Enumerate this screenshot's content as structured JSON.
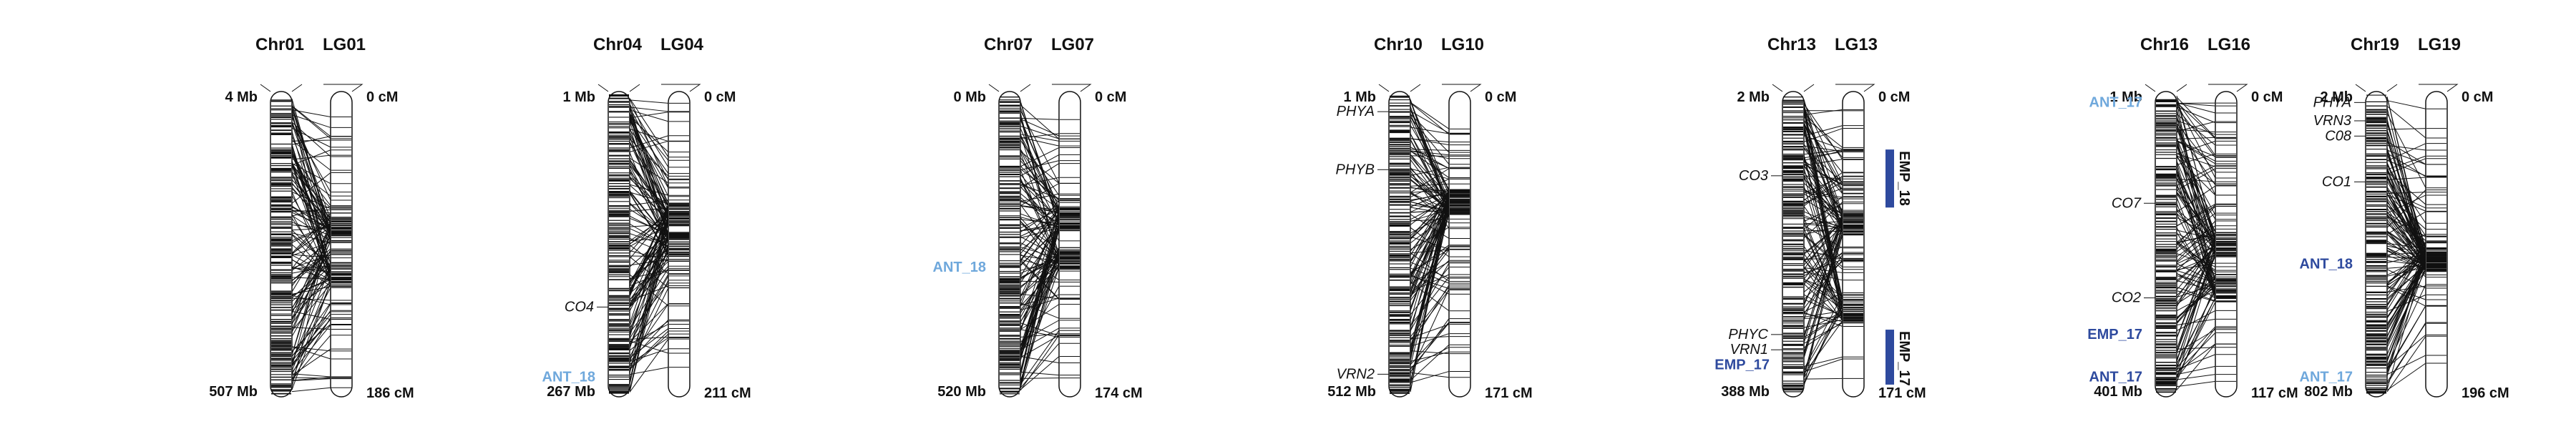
{
  "colors": {
    "light_blue": "#6fa8dc",
    "dark_blue": "#2e4a9e",
    "ink": "#111111"
  },
  "panels": [
    {
      "id": "chr01-lg01",
      "chr": "Chr01",
      "lg": "LG01",
      "phys_start": "4 Mb",
      "phys_end": "507 Mb",
      "gen_start": "0 cM",
      "gen_end": "186 cM",
      "genes": [],
      "qtl_labels": [],
      "qtl_bars": [],
      "seed": 11,
      "gen_clusters": [
        0.45,
        0.6
      ]
    },
    {
      "id": "chr04-lg04",
      "chr": "Chr04",
      "lg": "LG04",
      "phys_start": "1 Mb",
      "phys_end": "267 Mb",
      "gen_start": "0 cM",
      "gen_end": "211 cM",
      "genes": [
        {
          "text": "CO4",
          "pos": 0.72
        }
      ],
      "qtl_labels": [
        {
          "text": "ANT_18",
          "pos": 0.95,
          "color": "light_blue"
        }
      ],
      "qtl_bars": [],
      "seed": 23,
      "gen_clusters": [
        0.4,
        0.5
      ]
    },
    {
      "id": "chr07-lg07",
      "chr": "Chr07",
      "lg": "LG07",
      "phys_start": "0 Mb",
      "phys_end": "520 Mb",
      "gen_start": "0 cM",
      "gen_end": "174 cM",
      "genes": [],
      "qtl_labels": [
        {
          "text": "ANT_18",
          "pos": 0.59,
          "color": "light_blue"
        }
      ],
      "qtl_bars": [],
      "seed": 37,
      "gen_clusters": [
        0.42,
        0.55
      ]
    },
    {
      "id": "chr10-lg10",
      "chr": "Chr10",
      "lg": "LG10",
      "phys_start": "1 Mb",
      "phys_end": "512 Mb",
      "gen_start": "0 cM",
      "gen_end": "171 cM",
      "genes": [
        {
          "text": "PHYA",
          "pos": 0.08
        },
        {
          "text": "PHYB",
          "pos": 0.27
        },
        {
          "text": "VRN2",
          "pos": 0.94
        }
      ],
      "qtl_labels": [],
      "qtl_bars": [],
      "seed": 41,
      "gen_clusters": [
        0.36
      ]
    },
    {
      "id": "chr13-lg13",
      "chr": "Chr13",
      "lg": "LG13",
      "phys_start": "2 Mb",
      "phys_end": "388 Mb",
      "gen_start": "0 cM",
      "gen_end": "171 cM",
      "genes": [
        {
          "text": "CO3",
          "pos": 0.29
        },
        {
          "text": "PHYC",
          "pos": 0.81
        },
        {
          "text": "VRN1",
          "pos": 0.86
        }
      ],
      "qtl_labels": [
        {
          "text": "EMP_17",
          "pos": 0.91,
          "color": "dark_blue"
        }
      ],
      "qtl_bars": [
        {
          "text": "EMP_18",
          "start": 0.19,
          "end": 0.38
        },
        {
          "text": "EMP_17",
          "start": 0.78,
          "end": 0.96
        }
      ],
      "seed": 53,
      "gen_clusters": [
        0.43,
        0.72
      ]
    },
    {
      "id": "chr16-lg16",
      "chr": "Chr16",
      "lg": "LG16",
      "phys_start": "1 Mb",
      "phys_end": "401 Mb",
      "gen_start": "0 cM",
      "gen_end": "117 cM",
      "genes": [
        {
          "text": "CO7",
          "pos": 0.38
        },
        {
          "text": "CO2",
          "pos": 0.69
        }
      ],
      "qtl_labels": [
        {
          "text": "ANT_17",
          "pos": 0.05,
          "color": "light_blue"
        },
        {
          "text": "EMP_17",
          "pos": 0.81,
          "color": "dark_blue"
        },
        {
          "text": "ANT_17",
          "pos": 0.95,
          "color": "dark_blue"
        }
      ],
      "qtl_bars": [],
      "seed": 67,
      "gen_clusters": [
        0.5,
        0.65
      ]
    },
    {
      "id": "chr19-lg19",
      "chr": "Chr19",
      "lg": "LG19",
      "phys_start": "2 Mb",
      "phys_end": "802 Mb",
      "gen_start": "0 cM",
      "gen_end": "196 cM",
      "genes": [
        {
          "text": "PHYA",
          "pos": 0.05
        },
        {
          "text": "VRN3",
          "pos": 0.11
        },
        {
          "text": "C08",
          "pos": 0.16
        },
        {
          "text": "CO1",
          "pos": 0.31
        }
      ],
      "qtl_labels": [
        {
          "text": "ANT_18",
          "pos": 0.58,
          "color": "dark_blue"
        },
        {
          "text": "ANT_17",
          "pos": 0.95,
          "color": "light_blue"
        }
      ],
      "qtl_bars": [],
      "seed": 79,
      "gen_clusters": [
        0.55
      ]
    }
  ]
}
